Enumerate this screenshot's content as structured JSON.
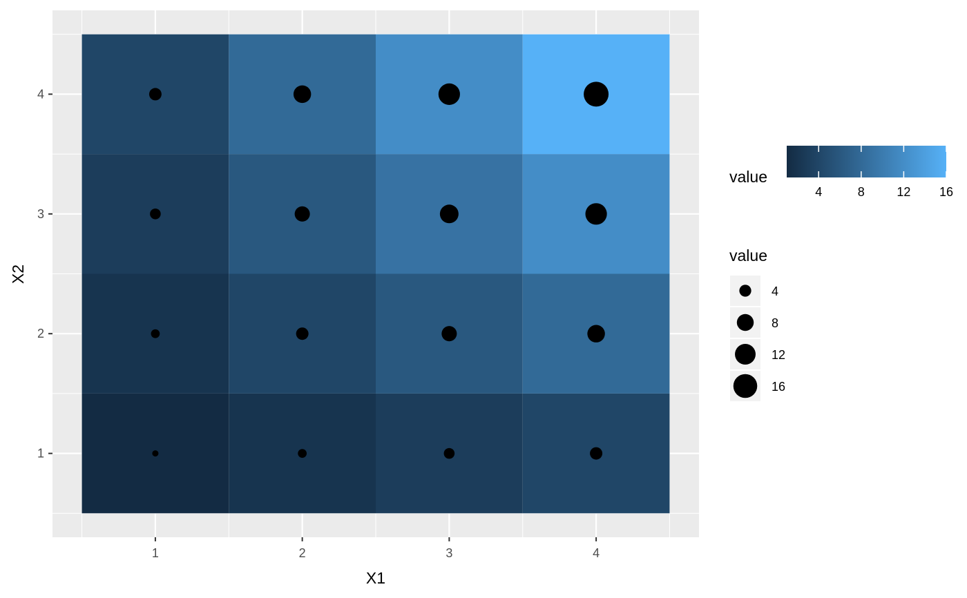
{
  "chart_data": {
    "type": "heatmap",
    "title": "",
    "xlabel": "X1",
    "ylabel": "X2",
    "x_categories": [
      1,
      2,
      3,
      4
    ],
    "y_categories": [
      1,
      2,
      3,
      4
    ],
    "x_tick_labels": [
      "1",
      "2",
      "3",
      "4"
    ],
    "y_tick_labels": [
      "1",
      "2",
      "3",
      "4"
    ],
    "xlim": [
      0.3,
      4.7
    ],
    "ylim": [
      0.3,
      4.7
    ],
    "grid": true,
    "cells": [
      {
        "x": 1,
        "y": 1,
        "value": 1
      },
      {
        "x": 2,
        "y": 1,
        "value": 2
      },
      {
        "x": 3,
        "y": 1,
        "value": 3
      },
      {
        "x": 4,
        "y": 1,
        "value": 4
      },
      {
        "x": 1,
        "y": 2,
        "value": 2
      },
      {
        "x": 2,
        "y": 2,
        "value": 4
      },
      {
        "x": 3,
        "y": 2,
        "value": 6
      },
      {
        "x": 4,
        "y": 2,
        "value": 8
      },
      {
        "x": 1,
        "y": 3,
        "value": 3
      },
      {
        "x": 2,
        "y": 3,
        "value": 6
      },
      {
        "x": 3,
        "y": 3,
        "value": 9
      },
      {
        "x": 4,
        "y": 3,
        "value": 12
      },
      {
        "x": 1,
        "y": 4,
        "value": 4
      },
      {
        "x": 2,
        "y": 4,
        "value": 8
      },
      {
        "x": 3,
        "y": 4,
        "value": 12
      },
      {
        "x": 4,
        "y": 4,
        "value": 16
      }
    ],
    "color_scale": {
      "title": "value",
      "low": "#132b43",
      "high": "#56b1f7",
      "min": 1,
      "max": 16,
      "breaks": [
        4,
        8,
        12,
        16
      ],
      "break_labels": [
        "4",
        "8",
        "12",
        "16"
      ],
      "legend_position": "right"
    },
    "size_scale": {
      "title": "value",
      "min": 1,
      "max": 16,
      "breaks": [
        4,
        8,
        12,
        16
      ],
      "break_labels": [
        "4",
        "8",
        "12",
        "16"
      ],
      "legend_position": "right"
    },
    "point_color": "#000000",
    "panel_background": "#ebebeb",
    "grid_color": "#ffffff"
  }
}
